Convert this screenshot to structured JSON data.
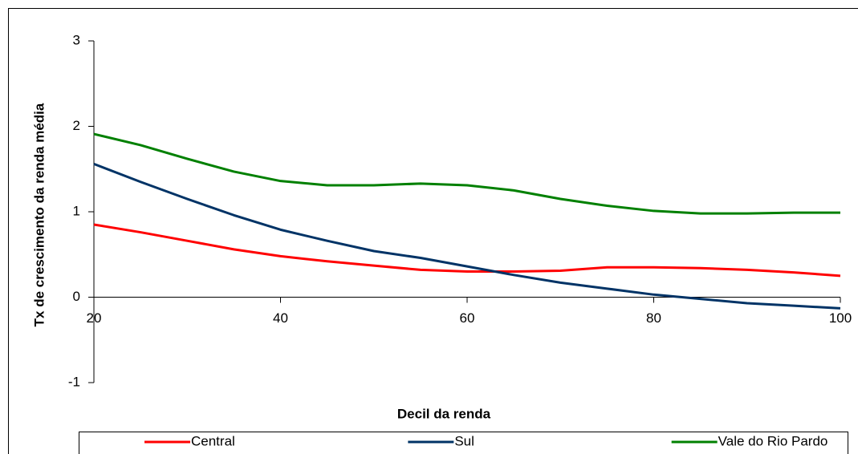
{
  "chart_data": {
    "type": "line",
    "x_label": "Decil da renda",
    "y_label": "Tx de crescimento da renda média",
    "x": [
      20,
      25,
      30,
      35,
      40,
      45,
      50,
      55,
      60,
      65,
      70,
      75,
      80,
      85,
      90,
      95,
      100
    ],
    "series": [
      {
        "name": "Central",
        "color": "#ff0000",
        "values": [
          0.85,
          0.76,
          0.66,
          0.56,
          0.48,
          0.42,
          0.37,
          0.32,
          0.3,
          0.3,
          0.31,
          0.35,
          0.35,
          0.34,
          0.32,
          0.29,
          0.25
        ]
      },
      {
        "name": "Sul",
        "color": "#003366",
        "values": [
          1.56,
          1.35,
          1.15,
          0.96,
          0.79,
          0.66,
          0.54,
          0.46,
          0.36,
          0.26,
          0.17,
          0.1,
          0.03,
          -0.02,
          -0.07,
          -0.1,
          -0.13
        ]
      },
      {
        "name": "Vale do Rio Pardo",
        "color": "#008000",
        "values": [
          1.91,
          1.78,
          1.62,
          1.47,
          1.36,
          1.31,
          1.31,
          1.33,
          1.31,
          1.25,
          1.15,
          1.07,
          1.01,
          0.98,
          0.98,
          0.99,
          0.99
        ]
      }
    ],
    "xlim": [
      20,
      100
    ],
    "xticks": [
      20,
      40,
      60,
      80,
      100
    ],
    "ylim": [
      -1,
      3
    ],
    "yticks": [
      -1,
      0,
      1,
      2,
      3
    ],
    "legend": "bottom"
  }
}
